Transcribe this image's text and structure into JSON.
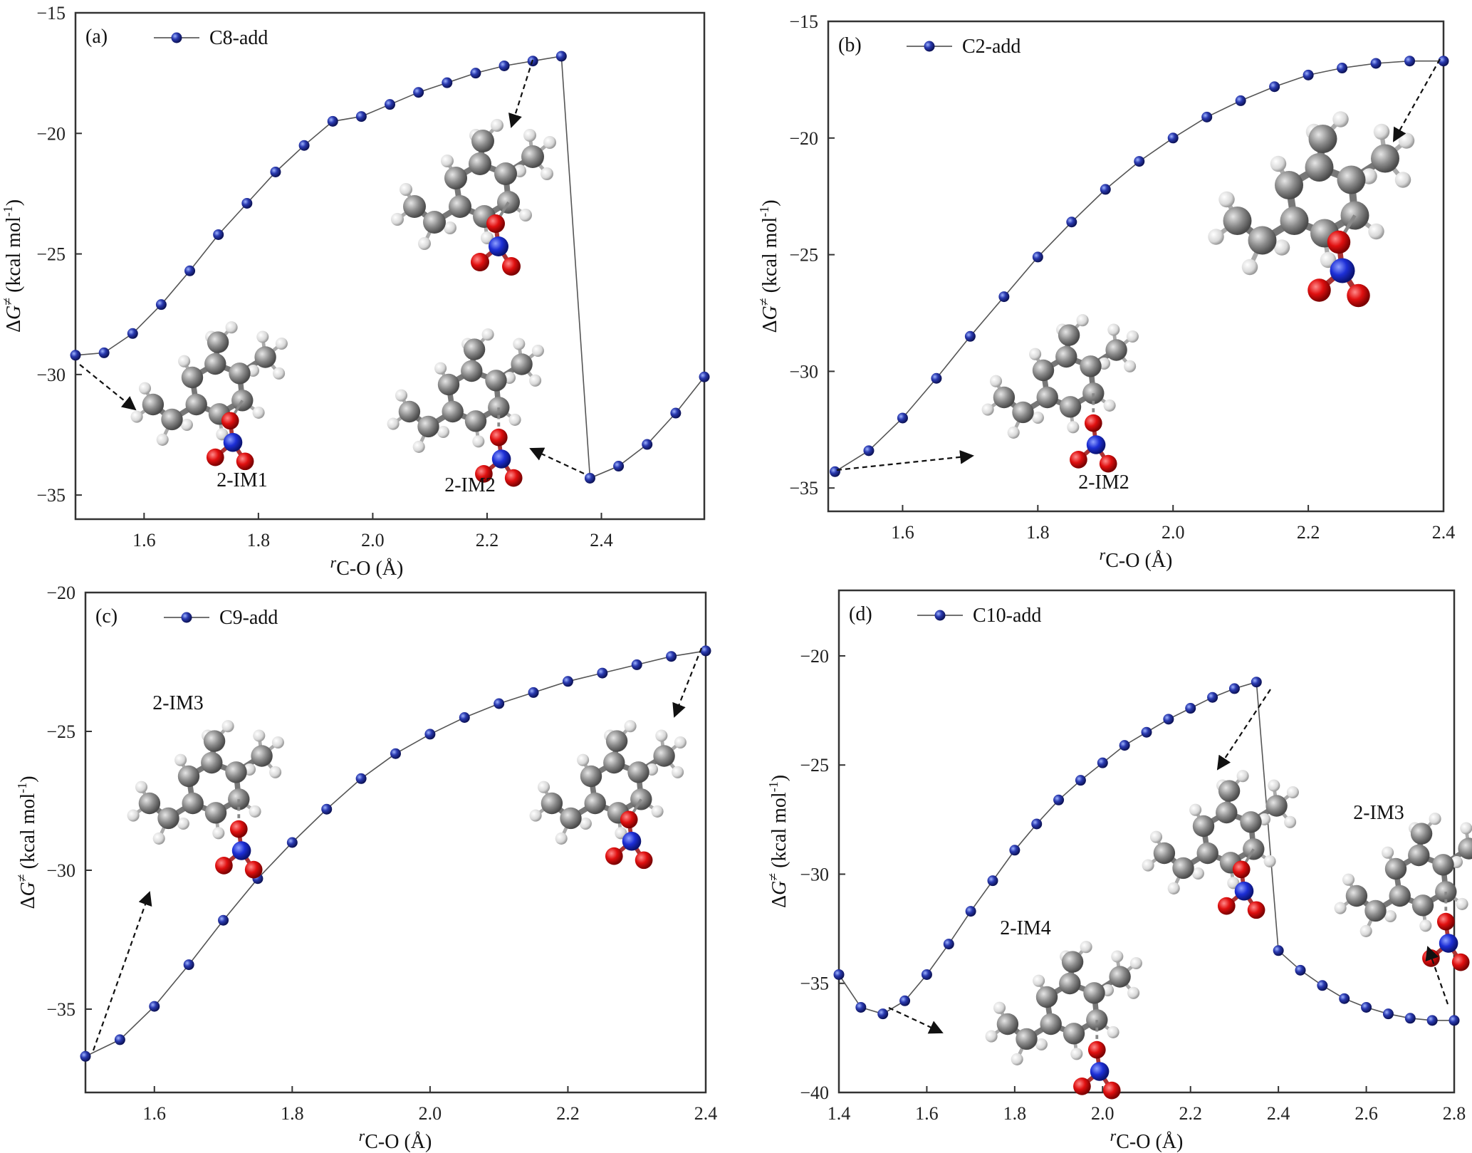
{
  "chart_data": [
    {
      "type": "line",
      "panel_label": "(a)",
      "xlabel_sub": "C-O",
      "xlabel_prefix": "r",
      "xlabel_unit": " (Å)",
      "ylabel": "ΔG≠ (kcal mol-1)",
      "xlim": [
        1.48,
        2.58
      ],
      "ylim": [
        -36,
        -15
      ],
      "xticks": [
        "1.6",
        "1.8",
        "2.0",
        "2.2",
        "2.4"
      ],
      "xtick_values": [
        1.6,
        1.8,
        2.0,
        2.2,
        2.4
      ],
      "yticks": [
        "-15",
        "-20",
        "-25",
        "-30",
        "-35"
      ],
      "ytick_values": [
        -15,
        -20,
        -25,
        -30,
        -35
      ],
      "series": [
        {
          "name": "C8-add",
          "color": "#1f2d8c",
          "x": [
            1.48,
            1.53,
            1.58,
            1.63,
            1.68,
            1.73,
            1.78,
            1.83,
            1.88,
            1.93,
            1.98,
            2.03,
            2.08,
            2.13,
            2.18,
            2.23,
            2.28,
            2.33,
            2.38,
            2.43,
            2.48,
            2.53,
            2.58
          ],
          "y": [
            -29.2,
            -29.1,
            -28.3,
            -27.1,
            -25.7,
            -24.2,
            -22.9,
            -21.6,
            -20.5,
            -19.5,
            -19.3,
            -18.8,
            -18.3,
            -17.9,
            -17.5,
            -17.2,
            -17.0,
            -16.8,
            -34.3,
            -33.8,
            -32.9,
            -31.6,
            -30.1
          ]
        }
      ],
      "annotations": [
        "2-IM1",
        "2-IM2"
      ],
      "legend_position": "top-left"
    },
    {
      "type": "line",
      "panel_label": "(b)",
      "xlabel_sub": "C-O",
      "xlabel_prefix": "r",
      "xlabel_unit": " (Å)",
      "ylabel": "ΔG≠ (kcal mol-1)",
      "xlim": [
        1.49,
        2.4
      ],
      "ylim": [
        -36,
        -15
      ],
      "xticks": [
        "1.6",
        "1.8",
        "2.0",
        "2.2",
        "2.4"
      ],
      "xtick_values": [
        1.6,
        1.8,
        2.0,
        2.2,
        2.4
      ],
      "yticks": [
        "-15",
        "-20",
        "-25",
        "-30",
        "-35"
      ],
      "ytick_values": [
        -15,
        -20,
        -25,
        -30,
        -35
      ],
      "series": [
        {
          "name": "C2-add",
          "color": "#1f2d8c",
          "x": [
            1.5,
            1.55,
            1.6,
            1.65,
            1.7,
            1.75,
            1.8,
            1.85,
            1.9,
            1.95,
            2.0,
            2.05,
            2.1,
            2.15,
            2.2,
            2.25,
            2.3,
            2.35,
            2.4
          ],
          "y": [
            -34.3,
            -33.4,
            -32.0,
            -30.3,
            -28.5,
            -26.8,
            -25.1,
            -23.6,
            -22.2,
            -21.0,
            -20.0,
            -19.1,
            -18.4,
            -17.8,
            -17.3,
            -17.0,
            -16.8,
            -16.7,
            -16.7
          ]
        }
      ],
      "annotations": [
        "2-IM2"
      ],
      "legend_position": "top-left"
    },
    {
      "type": "line",
      "panel_label": "(c)",
      "xlabel_sub": "C-O",
      "xlabel_prefix": "r",
      "xlabel_unit": " (Å)",
      "ylabel": "ΔG≠ (kcal mol-1)",
      "xlim": [
        1.5,
        2.4
      ],
      "ylim": [
        -38,
        -20
      ],
      "xticks": [
        "1.6",
        "1.8",
        "2.0",
        "2.2",
        "2.4"
      ],
      "xtick_values": [
        1.6,
        1.8,
        2.0,
        2.2,
        2.4
      ],
      "yticks": [
        "-20",
        "-25",
        "-30",
        "-35"
      ],
      "ytick_values": [
        -20,
        -25,
        -30,
        -35
      ],
      "series": [
        {
          "name": "C9-add",
          "color": "#1f2d8c",
          "x": [
            1.5,
            1.55,
            1.6,
            1.65,
            1.7,
            1.75,
            1.8,
            1.85,
            1.9,
            1.95,
            2.0,
            2.05,
            2.1,
            2.15,
            2.2,
            2.25,
            2.3,
            2.35,
            2.4
          ],
          "y": [
            -36.7,
            -36.1,
            -34.9,
            -33.4,
            -31.8,
            -30.3,
            -29.0,
            -27.8,
            -26.7,
            -25.8,
            -25.1,
            -24.5,
            -24.0,
            -23.6,
            -23.2,
            -22.9,
            -22.6,
            -22.3,
            -22.1
          ]
        }
      ],
      "annotations": [
        "2-IM3"
      ],
      "legend_position": "top-left"
    },
    {
      "type": "line",
      "panel_label": "(d)",
      "xlabel_sub": "C-O",
      "xlabel_prefix": "r",
      "xlabel_unit": " (Å)",
      "ylabel": "ΔG≠ (kcal mol-1)",
      "xlim": [
        1.4,
        2.8
      ],
      "ylim": [
        -40,
        -17
      ],
      "xticks": [
        "1.4",
        "1.6",
        "1.8",
        "2.0",
        "2.2",
        "2.4",
        "2.6",
        "2.8"
      ],
      "xtick_values": [
        1.4,
        1.6,
        1.8,
        2.0,
        2.2,
        2.4,
        2.6,
        2.8
      ],
      "yticks": [
        "-20",
        "-25",
        "-30",
        "-35",
        "-40"
      ],
      "ytick_values": [
        -20,
        -25,
        -30,
        -35,
        -40
      ],
      "series": [
        {
          "name": "C10-add",
          "color": "#1f2d8c",
          "x": [
            1.4,
            1.45,
            1.5,
            1.55,
            1.6,
            1.65,
            1.7,
            1.75,
            1.8,
            1.85,
            1.9,
            1.95,
            2.0,
            2.05,
            2.1,
            2.15,
            2.2,
            2.25,
            2.3,
            2.35,
            2.4,
            2.45,
            2.5,
            2.55,
            2.6,
            2.65,
            2.7,
            2.75,
            2.8
          ],
          "y": [
            -34.6,
            -36.1,
            -36.4,
            -35.8,
            -34.6,
            -33.2,
            -31.7,
            -30.3,
            -28.9,
            -27.7,
            -26.6,
            -25.7,
            -24.9,
            -24.1,
            -23.5,
            -22.9,
            -22.4,
            -21.9,
            -21.5,
            -21.2,
            -33.5,
            -34.4,
            -35.1,
            -35.7,
            -36.1,
            -36.4,
            -36.6,
            -36.7,
            -36.7
          ]
        }
      ],
      "annotations": [
        "2-IM4",
        "2-IM3"
      ],
      "legend_position": "top-left"
    }
  ]
}
